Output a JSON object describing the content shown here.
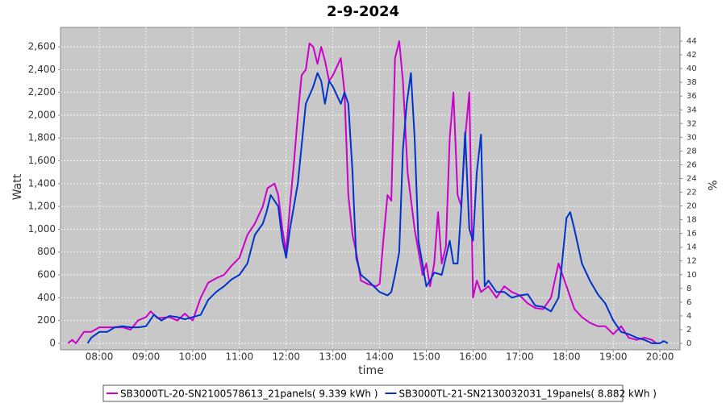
{
  "chart_data": {
    "type": "line",
    "title": "2-9-2024",
    "x_label": "time",
    "y_label": "Watt",
    "y2_label": "%",
    "xlim": [
      7.17,
      20.43
    ],
    "xticks": [
      {
        "value": 8,
        "label": "08:00"
      },
      {
        "value": 9,
        "label": "09:00"
      },
      {
        "value": 10,
        "label": "10:00"
      },
      {
        "value": 11,
        "label": "11:00"
      },
      {
        "value": 12,
        "label": "12:00"
      },
      {
        "value": 13,
        "label": "13:00"
      },
      {
        "value": 14,
        "label": "14:00"
      },
      {
        "value": 15,
        "label": "15:00"
      },
      {
        "value": 16,
        "label": "16:00"
      },
      {
        "value": 17,
        "label": "17:00"
      },
      {
        "value": 18,
        "label": "18:00"
      },
      {
        "value": 19,
        "label": "19:00"
      },
      {
        "value": 20,
        "label": "20:00"
      }
    ],
    "ylim": [
      -57,
      2770
    ],
    "yticks": [
      0,
      200,
      400,
      600,
      800,
      {
        "value": 1000,
        "label": "1,000"
      },
      {
        "value": 1200,
        "label": "1,200"
      },
      {
        "value": 1400,
        "label": "1,400"
      },
      {
        "value": 1600,
        "label": "1,600"
      },
      {
        "value": 1800,
        "label": "1,800"
      },
      {
        "value": 2000,
        "label": "2,000"
      },
      {
        "value": 2200,
        "label": "2,200"
      },
      {
        "value": 2400,
        "label": "2,400"
      },
      {
        "value": 2600,
        "label": "2,600"
      }
    ],
    "y2lim": [
      -0.94,
      46.0
    ],
    "y2ticks": [
      0,
      2,
      4,
      6,
      8,
      10,
      12,
      14,
      16,
      18,
      20,
      22,
      24,
      26,
      28,
      30,
      32,
      34,
      36,
      38,
      40,
      42,
      44
    ],
    "grid": true,
    "legend": "bottom",
    "series": [
      {
        "name": "SB3000TL-20-SN2100578613_21panels( 9.339 kWh )",
        "color": "#cc00cc",
        "x": [
          7.33,
          7.42,
          7.5,
          7.67,
          7.83,
          8.0,
          8.25,
          8.5,
          8.67,
          8.83,
          9.0,
          9.1,
          9.25,
          9.5,
          9.67,
          9.83,
          10.0,
          10.17,
          10.33,
          10.5,
          10.67,
          10.83,
          11.0,
          11.17,
          11.33,
          11.5,
          11.6,
          11.75,
          11.83,
          11.92,
          12.0,
          12.08,
          12.17,
          12.25,
          12.33,
          12.42,
          12.5,
          12.58,
          12.67,
          12.75,
          12.83,
          12.92,
          13.0,
          13.17,
          13.25,
          13.33,
          13.42,
          13.5,
          13.6,
          13.75,
          13.92,
          14.0,
          14.08,
          14.17,
          14.25,
          14.33,
          14.42,
          14.5,
          14.6,
          14.75,
          14.92,
          15.0,
          15.08,
          15.17,
          15.25,
          15.33,
          15.42,
          15.5,
          15.58,
          15.67,
          15.75,
          15.83,
          15.92,
          16.0,
          16.08,
          16.17,
          16.33,
          16.5,
          16.67,
          16.83,
          17.0,
          17.17,
          17.33,
          17.5,
          17.67,
          17.83,
          18.0,
          18.17,
          18.33,
          18.5,
          18.67,
          18.83,
          19.0,
          19.17,
          19.33,
          19.5,
          19.67,
          19.83,
          19.92
        ],
        "values": [
          0,
          30,
          0,
          100,
          100,
          140,
          140,
          140,
          120,
          200,
          230,
          280,
          220,
          230,
          200,
          260,
          200,
          400,
          530,
          570,
          600,
          680,
          750,
          950,
          1050,
          1200,
          1360,
          1400,
          1300,
          1000,
          800,
          1200,
          1600,
          2000,
          2350,
          2400,
          2630,
          2600,
          2450,
          2600,
          2480,
          2300,
          2350,
          2500,
          2200,
          1300,
          950,
          800,
          550,
          520,
          500,
          520,
          900,
          1300,
          1250,
          2500,
          2650,
          2300,
          1500,
          1000,
          600,
          700,
          500,
          700,
          1150,
          700,
          850,
          1800,
          2200,
          1300,
          1200,
          1800,
          2200,
          400,
          550,
          450,
          500,
          400,
          500,
          450,
          420,
          350,
          310,
          300,
          400,
          700,
          500,
          300,
          230,
          180,
          150,
          150,
          80,
          150,
          50,
          30,
          50,
          30,
          0
        ]
      },
      {
        "name": "SB3000TL-21-SN2130032031_19panels( 8.882 kWh )",
        "color": "#0033cc",
        "x": [
          7.75,
          7.83,
          8.0,
          8.17,
          8.33,
          8.5,
          8.67,
          8.83,
          9.0,
          9.17,
          9.33,
          9.5,
          9.67,
          9.83,
          10.0,
          10.17,
          10.33,
          10.5,
          10.67,
          10.83,
          11.0,
          11.17,
          11.33,
          11.5,
          11.58,
          11.67,
          11.75,
          11.83,
          11.92,
          12.0,
          12.08,
          12.25,
          12.42,
          12.58,
          12.67,
          12.75,
          12.83,
          12.92,
          13.0,
          13.17,
          13.25,
          13.33,
          13.42,
          13.5,
          13.6,
          13.75,
          14.0,
          14.17,
          14.25,
          14.33,
          14.42,
          14.5,
          14.58,
          14.67,
          14.75,
          14.83,
          15.0,
          15.08,
          15.17,
          15.33,
          15.5,
          15.58,
          15.67,
          15.75,
          15.83,
          15.92,
          16.0,
          16.08,
          16.17,
          16.25,
          16.33,
          16.5,
          16.67,
          16.83,
          17.0,
          17.17,
          17.33,
          17.5,
          17.67,
          17.83,
          18.0,
          18.08,
          18.17,
          18.33,
          18.5,
          18.67,
          18.83,
          19.0,
          19.17,
          19.33,
          19.5,
          19.67,
          19.83,
          19.92,
          20.0,
          20.08,
          20.17
        ],
        "values": [
          0,
          50,
          100,
          100,
          140,
          150,
          140,
          140,
          150,
          250,
          200,
          240,
          230,
          210,
          230,
          250,
          380,
          450,
          500,
          560,
          600,
          700,
          950,
          1050,
          1150,
          1300,
          1250,
          1200,
          900,
          750,
          1000,
          1400,
          2100,
          2250,
          2370,
          2300,
          2100,
          2300,
          2250,
          2100,
          2200,
          2100,
          1500,
          750,
          600,
          550,
          450,
          420,
          450,
          600,
          800,
          1700,
          2100,
          2370,
          1800,
          900,
          500,
          550,
          620,
          600,
          900,
          700,
          700,
          1200,
          1850,
          1000,
          900,
          1500,
          1830,
          500,
          550,
          450,
          450,
          400,
          420,
          430,
          330,
          320,
          280,
          400,
          1100,
          1150,
          1000,
          700,
          550,
          430,
          350,
          200,
          100,
          80,
          50,
          30,
          0,
          0,
          0,
          20,
          0
        ]
      }
    ]
  }
}
